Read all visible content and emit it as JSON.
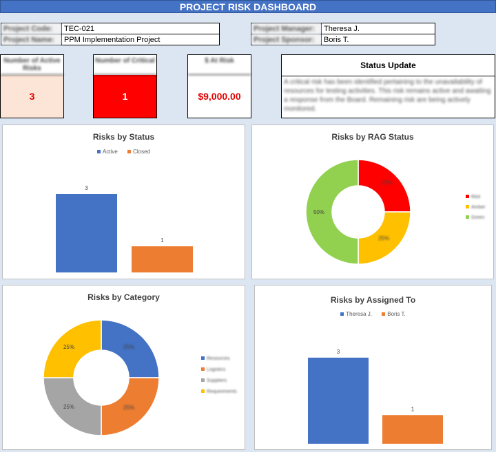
{
  "header": {
    "title": "PROJECT RISK DASHBOARD"
  },
  "project": {
    "code_label": "Project Code:",
    "code_value": "TEC-021",
    "name_label": "Project Name:",
    "name_value": "PPM Implementation Project",
    "manager_label": "Project Manager:",
    "manager_value": "Theresa J.",
    "sponsor_label": "Project Sponsor:",
    "sponsor_value": "Boris T."
  },
  "kpis": [
    {
      "label": "Number of Active Risks",
      "value": "3",
      "bg": "#fce4d6",
      "color": "#e00000"
    },
    {
      "label": "Number of Critical",
      "value": "1",
      "bg": "#ff0000",
      "color": "#ffffff"
    },
    {
      "label": "$ At Risk",
      "value": "$9,000.00",
      "bg": "#ffffff",
      "color": "#e00000"
    }
  ],
  "status_update": {
    "heading": "Status Update",
    "text": "A critical risk has been identified pertaining to the unavailability of resources for testing activities. This risk remains active and awaiting a response from the Board. Remaining risk are being actively monitored."
  },
  "colors": {
    "blue": "#4472c4",
    "orange": "#ed7d31",
    "gray": "#a5a5a5",
    "gold": "#ffc000",
    "red": "#ff0000",
    "green": "#92d050"
  },
  "chart_data": [
    {
      "type": "bar",
      "title": "Risks by Status",
      "categories": [
        ""
      ],
      "series": [
        {
          "name": "Active",
          "values": [
            3
          ],
          "color": "#4472c4"
        },
        {
          "name": "Closed",
          "values": [
            1
          ],
          "color": "#ed7d31"
        }
      ],
      "data_labels": [
        "3",
        "1"
      ],
      "legend": "top",
      "ylim": [
        0,
        3.5
      ]
    },
    {
      "type": "pie",
      "title": "Risks by RAG Status",
      "labels": [
        "Red",
        "Amber",
        "Green"
      ],
      "values": [
        25,
        25,
        50
      ],
      "colors": [
        "#ff0000",
        "#ffc000",
        "#92d050"
      ],
      "data_labels": [
        "25%",
        "25%",
        "50%"
      ],
      "legend": "right"
    },
    {
      "type": "pie",
      "title": "Risks by Category",
      "labels": [
        "Resources",
        "Logistics",
        "Suppliers",
        "Requirements"
      ],
      "values": [
        25,
        25,
        25,
        25
      ],
      "colors": [
        "#4472c4",
        "#ed7d31",
        "#a5a5a5",
        "#ffc000"
      ],
      "data_labels": [
        "25%",
        "25%",
        "25%",
        "25%"
      ],
      "legend": "right"
    },
    {
      "type": "bar",
      "title": "Risks by Assigned To",
      "categories": [
        ""
      ],
      "series": [
        {
          "name": "Theresa J.",
          "values": [
            3
          ],
          "color": "#4472c4"
        },
        {
          "name": "Boris T.",
          "values": [
            1
          ],
          "color": "#ed7d31"
        }
      ],
      "data_labels": [
        "3",
        "1"
      ],
      "legend": "top",
      "ylim": [
        0,
        3.5
      ]
    }
  ]
}
